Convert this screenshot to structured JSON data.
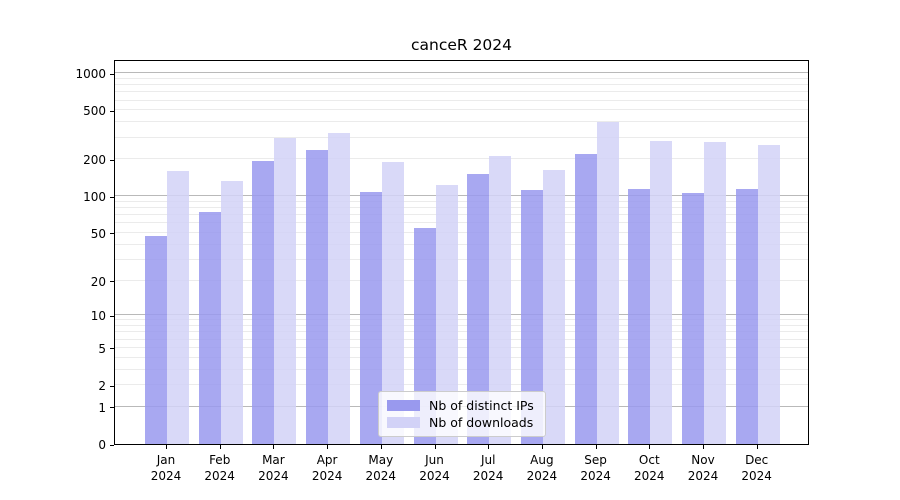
{
  "title": "canceR 2024",
  "chart_data": {
    "type": "bar",
    "title": "canceR 2024",
    "categories": [
      "Jan 2024",
      "Feb 2024",
      "Mar 2024",
      "Apr 2024",
      "May 2024",
      "Jun 2024",
      "Jul 2024",
      "Aug 2024",
      "Sep 2024",
      "Oct 2024",
      "Nov 2024",
      "Dec 2024"
    ],
    "x_tick_line1": [
      "Jan",
      "Feb",
      "Mar",
      "Apr",
      "May",
      "Jun",
      "Jul",
      "Aug",
      "Sep",
      "Oct",
      "Nov",
      "Dec"
    ],
    "x_tick_line2": "2024",
    "series": [
      {
        "name": "Nb of distinct IPs",
        "color": "#9999ee",
        "values": [
          47,
          75,
          193,
          240,
          108,
          55,
          151,
          112,
          222,
          114,
          106,
          115
        ]
      },
      {
        "name": "Nb of downloads",
        "color": "#d2d2f7",
        "values": [
          161,
          133,
          298,
          330,
          190,
          123,
          214,
          163,
          400,
          282,
          278,
          264
        ]
      }
    ],
    "xlabel": "",
    "ylabel": "",
    "y_axis": {
      "scale": "log1p",
      "tick_values": [
        0,
        1,
        2,
        5,
        10,
        20,
        50,
        100,
        200,
        500,
        1000
      ],
      "major_grid_values": [
        1,
        10,
        100,
        1000
      ],
      "minor_grid_values": [
        2,
        3,
        4,
        5,
        6,
        7,
        8,
        9,
        20,
        30,
        40,
        50,
        60,
        70,
        80,
        90,
        200,
        300,
        400,
        500,
        600,
        700,
        800,
        900
      ],
      "ylim": [
        0,
        1300
      ]
    },
    "legend": {
      "position": "bottom-center",
      "entries": [
        {
          "label": "Nb of distinct IPs",
          "color": "#9999ee"
        },
        {
          "label": "Nb of downloads",
          "color": "#d2d2f7"
        }
      ]
    },
    "grid": true
  }
}
